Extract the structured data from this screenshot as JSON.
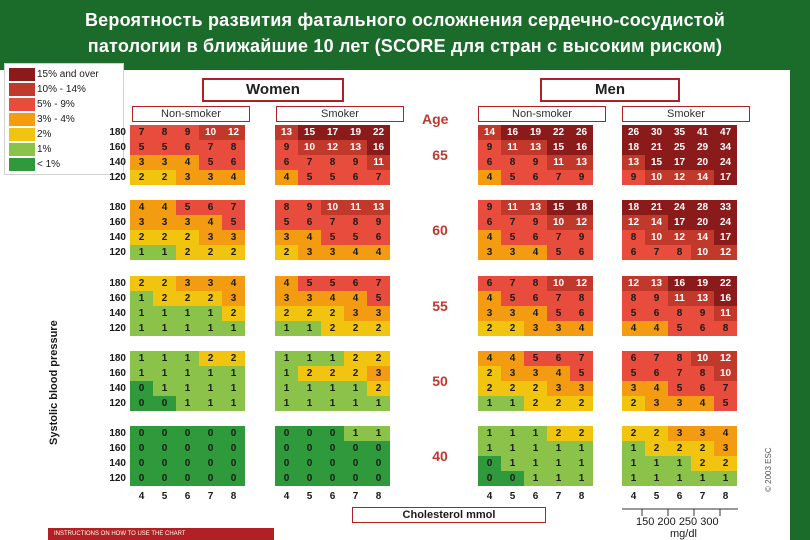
{
  "title_line1": "Вероятность развития фатального осложнения сердечно-сосудистой",
  "title_line2": "патологии в ближайшие 10 лет (SCORE для стран с высоким риском)",
  "legend": [
    {
      "label": "15% and over",
      "color": "#8b1a1a"
    },
    {
      "label": "10% - 14%",
      "color": "#c0392b"
    },
    {
      "label": "5% - 9%",
      "color": "#e74c3c"
    },
    {
      "label": "3% - 4%",
      "color": "#f39c12"
    },
    {
      "label": "2%",
      "color": "#f1c40f"
    },
    {
      "label": "1%",
      "color": "#8bc34a"
    },
    {
      "label": "< 1%",
      "color": "#2e9a3c"
    }
  ],
  "women_label": "Women",
  "men_label": "Men",
  "group_labels": [
    "Non-smoker",
    "Smoker",
    "Non-smoker",
    "Smoker"
  ],
  "age_header": "Age",
  "y_axis_label": "Systolic blood pressure",
  "x_axis_label": "Cholesterol mmol",
  "mgdl_ticks": "150 200 250 300",
  "mgdl_unit": "mg/dl",
  "instructions": "INSTRUCTIONS ON HOW TO USE THE CHART",
  "esc_mark": "© 2003 ESC",
  "chart_data": {
    "type": "heatmap",
    "title": "Вероятность развития фатального осложнения сердечно-сосудистой патологии в ближайшие 10 лет (SCORE для стран с высоким риском)",
    "xlabel": "Cholesterol mmol",
    "ylabel": "Systolic blood pressure",
    "cholesterol": [
      4,
      5,
      6,
      7,
      8
    ],
    "sbp": [
      180,
      160,
      140,
      120
    ],
    "ages": [
      65,
      60,
      55,
      50,
      40
    ],
    "panels": [
      {
        "sex": "Women",
        "smoking": "Non-smoker",
        "values": [
          [
            [
              7,
              8,
              9,
              10,
              12
            ],
            [
              5,
              5,
              6,
              7,
              8
            ],
            [
              3,
              3,
              4,
              5,
              6
            ],
            [
              2,
              2,
              3,
              3,
              4
            ]
          ],
          [
            [
              4,
              4,
              5,
              6,
              7
            ],
            [
              3,
              3,
              3,
              4,
              5
            ],
            [
              2,
              2,
              2,
              3,
              3
            ],
            [
              1,
              1,
              2,
              2,
              2
            ]
          ],
          [
            [
              2,
              2,
              3,
              3,
              4
            ],
            [
              1,
              2,
              2,
              2,
              3
            ],
            [
              1,
              1,
              1,
              1,
              2
            ],
            [
              1,
              1,
              1,
              1,
              1
            ]
          ],
          [
            [
              1,
              1,
              1,
              2,
              2
            ],
            [
              1,
              1,
              1,
              1,
              1
            ],
            [
              0,
              1,
              1,
              1,
              1
            ],
            [
              0,
              0,
              1,
              1,
              1
            ]
          ],
          [
            [
              0,
              0,
              0,
              0,
              0
            ],
            [
              0,
              0,
              0,
              0,
              0
            ],
            [
              0,
              0,
              0,
              0,
              0
            ],
            [
              0,
              0,
              0,
              0,
              0
            ]
          ]
        ]
      },
      {
        "sex": "Women",
        "smoking": "Smoker",
        "values": [
          [
            [
              13,
              15,
              17,
              19,
              22
            ],
            [
              9,
              10,
              12,
              13,
              16
            ],
            [
              6,
              7,
              8,
              9,
              11
            ],
            [
              4,
              5,
              5,
              6,
              7
            ]
          ],
          [
            [
              8,
              9,
              10,
              11,
              13
            ],
            [
              5,
              6,
              7,
              8,
              9
            ],
            [
              3,
              4,
              5,
              5,
              6
            ],
            [
              2,
              3,
              3,
              4,
              4
            ]
          ],
          [
            [
              4,
              5,
              5,
              6,
              7
            ],
            [
              3,
              3,
              4,
              4,
              5
            ],
            [
              2,
              2,
              2,
              3,
              3
            ],
            [
              1,
              1,
              2,
              2,
              2
            ]
          ],
          [
            [
              1,
              1,
              1,
              2,
              2
            ],
            [
              1,
              2,
              2,
              2,
              3
            ],
            [
              1,
              1,
              1,
              1,
              2
            ],
            [
              1,
              1,
              1,
              1,
              1
            ]
          ],
          [
            [
              0,
              0,
              0,
              1,
              1
            ],
            [
              0,
              0,
              0,
              0,
              0
            ],
            [
              0,
              0,
              0,
              0,
              0
            ],
            [
              0,
              0,
              0,
              0,
              0
            ]
          ]
        ]
      },
      {
        "sex": "Men",
        "smoking": "Non-smoker",
        "values": [
          [
            [
              14,
              16,
              19,
              22,
              26
            ],
            [
              9,
              11,
              13,
              15,
              16
            ],
            [
              6,
              8,
              9,
              11,
              13
            ],
            [
              4,
              5,
              6,
              7,
              9
            ]
          ],
          [
            [
              9,
              11,
              13,
              15,
              18
            ],
            [
              6,
              7,
              9,
              10,
              12
            ],
            [
              4,
              5,
              6,
              7,
              9
            ],
            [
              3,
              3,
              4,
              5,
              6
            ]
          ],
          [
            [
              6,
              7,
              8,
              10,
              12
            ],
            [
              4,
              5,
              6,
              7,
              8
            ],
            [
              3,
              3,
              4,
              5,
              6
            ],
            [
              2,
              2,
              3,
              3,
              4
            ]
          ],
          [
            [
              4,
              4,
              5,
              6,
              7
            ],
            [
              2,
              3,
              3,
              4,
              5
            ],
            [
              2,
              2,
              2,
              3,
              3
            ],
            [
              1,
              1,
              2,
              2,
              2
            ]
          ],
          [
            [
              1,
              1,
              1,
              2,
              2
            ],
            [
              1,
              1,
              1,
              1,
              1
            ],
            [
              0,
              1,
              1,
              1,
              1
            ],
            [
              0,
              0,
              1,
              1,
              1
            ]
          ]
        ]
      },
      {
        "sex": "Men",
        "smoking": "Smoker",
        "values": [
          [
            [
              26,
              30,
              35,
              41,
              47
            ],
            [
              18,
              21,
              25,
              29,
              34
            ],
            [
              13,
              15,
              17,
              20,
              24
            ],
            [
              9,
              10,
              12,
              14,
              17
            ]
          ],
          [
            [
              18,
              21,
              24,
              28,
              33
            ],
            [
              12,
              14,
              17,
              20,
              24
            ],
            [
              8,
              10,
              12,
              14,
              17
            ],
            [
              6,
              7,
              8,
              10,
              12
            ]
          ],
          [
            [
              12,
              13,
              16,
              19,
              22
            ],
            [
              8,
              9,
              11,
              13,
              16
            ],
            [
              5,
              6,
              8,
              9,
              11
            ],
            [
              4,
              4,
              5,
              6,
              8
            ]
          ],
          [
            [
              6,
              7,
              8,
              10,
              12
            ],
            [
              5,
              6,
              7,
              8,
              10
            ],
            [
              3,
              4,
              5,
              6,
              7
            ],
            [
              2,
              3,
              3,
              4,
              5
            ]
          ],
          [
            [
              2,
              2,
              3,
              3,
              4
            ],
            [
              1,
              2,
              2,
              2,
              3
            ],
            [
              1,
              1,
              1,
              2,
              2
            ],
            [
              1,
              1,
              1,
              1,
              1
            ]
          ]
        ]
      }
    ]
  }
}
